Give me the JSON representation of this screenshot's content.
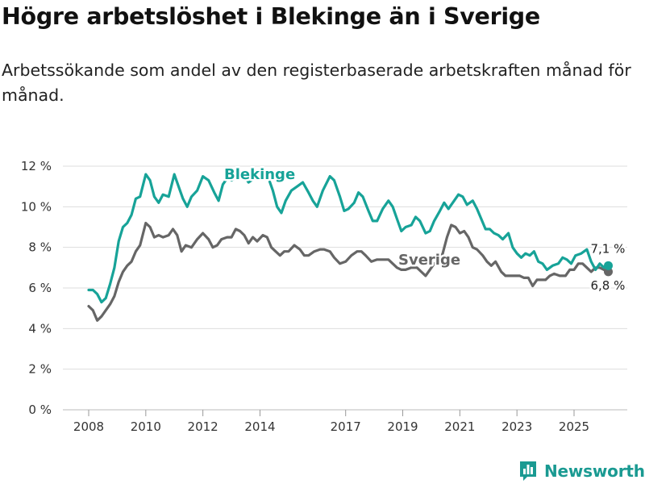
{
  "header": {
    "title": "Högre arbetslöshet i Blekinge än i Sverige",
    "subtitle": "Arbetssökande som andel av den registerbaserade arbetskraften månad för månad."
  },
  "brand": {
    "name": "Newsworthy",
    "icon": "newsworthy-logo-icon"
  },
  "colors": {
    "blekinge": "#17a398",
    "sverige": "#666666",
    "grid": "#dddddd",
    "brand": "#1a9a92"
  },
  "chart_data": {
    "type": "line",
    "title": "Högre arbetslöshet i Blekinge än i Sverige",
    "xlabel": "",
    "ylabel": "",
    "ylim": [
      0,
      12
    ],
    "xlim": [
      2007.5,
      2026.4
    ],
    "y_ticks": [
      0,
      2,
      4,
      6,
      8,
      10,
      12
    ],
    "y_tick_labels": [
      "0 %",
      "2 %",
      "4 %",
      "6 %",
      "8 %",
      "10 %",
      "12 %"
    ],
    "x_ticks": [
      2008,
      2010,
      2012,
      2014,
      2017,
      2019,
      2021,
      2023,
      2025
    ],
    "x_tick_labels": [
      "2008",
      "2010",
      "2012",
      "2014",
      "2017",
      "2019",
      "2021",
      "2023",
      "2025"
    ],
    "grid": true,
    "series": [
      {
        "name": "Blekinge",
        "label": "Blekinge",
        "end_label": "7,1 %",
        "end_value": 7.1,
        "points": [
          [
            2008.0,
            5.9
          ],
          [
            2008.15,
            5.9
          ],
          [
            2008.3,
            5.7
          ],
          [
            2008.45,
            5.3
          ],
          [
            2008.6,
            5.5
          ],
          [
            2008.75,
            6.2
          ],
          [
            2008.9,
            7.0
          ],
          [
            2009.05,
            8.3
          ],
          [
            2009.2,
            9.0
          ],
          [
            2009.35,
            9.2
          ],
          [
            2009.5,
            9.6
          ],
          [
            2009.65,
            10.4
          ],
          [
            2009.8,
            10.5
          ],
          [
            2010.0,
            11.6
          ],
          [
            2010.15,
            11.3
          ],
          [
            2010.3,
            10.5
          ],
          [
            2010.45,
            10.2
          ],
          [
            2010.6,
            10.6
          ],
          [
            2010.8,
            10.5
          ],
          [
            2011.0,
            11.6
          ],
          [
            2011.15,
            11.0
          ],
          [
            2011.3,
            10.4
          ],
          [
            2011.45,
            10.0
          ],
          [
            2011.6,
            10.5
          ],
          [
            2011.8,
            10.8
          ],
          [
            2012.0,
            11.5
          ],
          [
            2012.2,
            11.3
          ],
          [
            2012.4,
            10.7
          ],
          [
            2012.55,
            10.3
          ],
          [
            2012.7,
            11.1
          ],
          [
            2012.85,
            11.4
          ],
          [
            2013.0,
            11.3
          ],
          [
            2013.2,
            11.5
          ],
          [
            2013.4,
            11.6
          ],
          [
            2013.6,
            11.2
          ],
          [
            2013.8,
            11.4
          ],
          [
            2014.0,
            11.4
          ],
          [
            2014.15,
            11.6
          ],
          [
            2014.3,
            11.4
          ],
          [
            2014.45,
            10.8
          ],
          [
            2014.6,
            10.0
          ],
          [
            2014.75,
            9.7
          ],
          [
            2014.9,
            10.3
          ],
          [
            2015.1,
            10.8
          ],
          [
            2015.3,
            11.0
          ],
          [
            2015.5,
            11.2
          ],
          [
            2015.7,
            10.7
          ],
          [
            2015.85,
            10.3
          ],
          [
            2016.0,
            10.0
          ],
          [
            2016.2,
            10.8
          ],
          [
            2016.45,
            11.5
          ],
          [
            2016.6,
            11.3
          ],
          [
            2016.8,
            10.5
          ],
          [
            2016.95,
            9.8
          ],
          [
            2017.1,
            9.9
          ],
          [
            2017.3,
            10.2
          ],
          [
            2017.45,
            10.7
          ],
          [
            2017.6,
            10.5
          ],
          [
            2017.8,
            9.8
          ],
          [
            2017.95,
            9.3
          ],
          [
            2018.1,
            9.3
          ],
          [
            2018.3,
            9.9
          ],
          [
            2018.5,
            10.3
          ],
          [
            2018.65,
            10.0
          ],
          [
            2018.8,
            9.4
          ],
          [
            2018.95,
            8.8
          ],
          [
            2019.1,
            9.0
          ],
          [
            2019.3,
            9.1
          ],
          [
            2019.45,
            9.5
          ],
          [
            2019.6,
            9.3
          ],
          [
            2019.8,
            8.7
          ],
          [
            2019.95,
            8.8
          ],
          [
            2020.1,
            9.3
          ],
          [
            2020.3,
            9.8
          ],
          [
            2020.45,
            10.2
          ],
          [
            2020.6,
            9.9
          ],
          [
            2020.8,
            10.3
          ],
          [
            2020.95,
            10.6
          ],
          [
            2021.1,
            10.5
          ],
          [
            2021.25,
            10.1
          ],
          [
            2021.45,
            10.3
          ],
          [
            2021.6,
            9.9
          ],
          [
            2021.75,
            9.4
          ],
          [
            2021.9,
            8.9
          ],
          [
            2022.05,
            8.9
          ],
          [
            2022.2,
            8.7
          ],
          [
            2022.35,
            8.6
          ],
          [
            2022.5,
            8.4
          ],
          [
            2022.7,
            8.7
          ],
          [
            2022.85,
            8.0
          ],
          [
            2023.0,
            7.7
          ],
          [
            2023.15,
            7.5
          ],
          [
            2023.3,
            7.7
          ],
          [
            2023.45,
            7.6
          ],
          [
            2023.6,
            7.8
          ],
          [
            2023.75,
            7.3
          ],
          [
            2023.9,
            7.2
          ],
          [
            2024.05,
            6.9
          ],
          [
            2024.25,
            7.1
          ],
          [
            2024.45,
            7.2
          ],
          [
            2024.6,
            7.5
          ],
          [
            2024.75,
            7.4
          ],
          [
            2024.9,
            7.2
          ],
          [
            2025.05,
            7.6
          ],
          [
            2025.25,
            7.7
          ],
          [
            2025.45,
            7.9
          ],
          [
            2025.6,
            7.3
          ],
          [
            2025.75,
            6.9
          ],
          [
            2025.9,
            7.2
          ],
          [
            2026.05,
            7.0
          ],
          [
            2026.2,
            7.1
          ]
        ]
      },
      {
        "name": "Sverige",
        "label": "Sverige",
        "end_label": "6,8 %",
        "end_value": 6.8,
        "points": [
          [
            2008.0,
            5.1
          ],
          [
            2008.15,
            4.9
          ],
          [
            2008.3,
            4.4
          ],
          [
            2008.45,
            4.6
          ],
          [
            2008.6,
            4.9
          ],
          [
            2008.75,
            5.2
          ],
          [
            2008.9,
            5.6
          ],
          [
            2009.05,
            6.3
          ],
          [
            2009.2,
            6.8
          ],
          [
            2009.35,
            7.1
          ],
          [
            2009.5,
            7.3
          ],
          [
            2009.65,
            7.8
          ],
          [
            2009.8,
            8.1
          ],
          [
            2010.0,
            9.2
          ],
          [
            2010.15,
            9.0
          ],
          [
            2010.3,
            8.5
          ],
          [
            2010.45,
            8.6
          ],
          [
            2010.6,
            8.5
          ],
          [
            2010.8,
            8.6
          ],
          [
            2010.95,
            8.9
          ],
          [
            2011.1,
            8.6
          ],
          [
            2011.25,
            7.8
          ],
          [
            2011.4,
            8.1
          ],
          [
            2011.6,
            8.0
          ],
          [
            2011.8,
            8.4
          ],
          [
            2012.0,
            8.7
          ],
          [
            2012.2,
            8.4
          ],
          [
            2012.35,
            8.0
          ],
          [
            2012.5,
            8.1
          ],
          [
            2012.65,
            8.4
          ],
          [
            2012.85,
            8.5
          ],
          [
            2013.0,
            8.5
          ],
          [
            2013.15,
            8.9
          ],
          [
            2013.3,
            8.8
          ],
          [
            2013.45,
            8.6
          ],
          [
            2013.6,
            8.2
          ],
          [
            2013.75,
            8.5
          ],
          [
            2013.9,
            8.3
          ],
          [
            2014.1,
            8.6
          ],
          [
            2014.25,
            8.5
          ],
          [
            2014.4,
            8.0
          ],
          [
            2014.55,
            7.8
          ],
          [
            2014.7,
            7.6
          ],
          [
            2014.85,
            7.8
          ],
          [
            2015.0,
            7.8
          ],
          [
            2015.2,
            8.1
          ],
          [
            2015.4,
            7.9
          ],
          [
            2015.55,
            7.6
          ],
          [
            2015.7,
            7.6
          ],
          [
            2015.9,
            7.8
          ],
          [
            2016.1,
            7.9
          ],
          [
            2016.25,
            7.9
          ],
          [
            2016.45,
            7.8
          ],
          [
            2016.6,
            7.5
          ],
          [
            2016.8,
            7.2
          ],
          [
            2017.0,
            7.3
          ],
          [
            2017.2,
            7.6
          ],
          [
            2017.4,
            7.8
          ],
          [
            2017.55,
            7.8
          ],
          [
            2017.7,
            7.6
          ],
          [
            2017.9,
            7.3
          ],
          [
            2018.1,
            7.4
          ],
          [
            2018.3,
            7.4
          ],
          [
            2018.5,
            7.4
          ],
          [
            2018.65,
            7.2
          ],
          [
            2018.8,
            7.0
          ],
          [
            2018.95,
            6.9
          ],
          [
            2019.1,
            6.9
          ],
          [
            2019.3,
            7.0
          ],
          [
            2019.5,
            7.0
          ],
          [
            2019.65,
            6.8
          ],
          [
            2019.8,
            6.6
          ],
          [
            2019.95,
            6.9
          ],
          [
            2020.1,
            7.2
          ],
          [
            2020.25,
            7.3
          ],
          [
            2020.4,
            7.7
          ],
          [
            2020.55,
            8.5
          ],
          [
            2020.7,
            9.1
          ],
          [
            2020.85,
            9.0
          ],
          [
            2021.0,
            8.7
          ],
          [
            2021.15,
            8.8
          ],
          [
            2021.3,
            8.5
          ],
          [
            2021.45,
            8.0
          ],
          [
            2021.6,
            7.9
          ],
          [
            2021.8,
            7.6
          ],
          [
            2021.95,
            7.3
          ],
          [
            2022.1,
            7.1
          ],
          [
            2022.25,
            7.3
          ],
          [
            2022.45,
            6.8
          ],
          [
            2022.6,
            6.6
          ],
          [
            2022.75,
            6.6
          ],
          [
            2022.95,
            6.6
          ],
          [
            2023.1,
            6.6
          ],
          [
            2023.25,
            6.5
          ],
          [
            2023.4,
            6.5
          ],
          [
            2023.55,
            6.1
          ],
          [
            2023.7,
            6.4
          ],
          [
            2023.85,
            6.4
          ],
          [
            2024.0,
            6.4
          ],
          [
            2024.15,
            6.6
          ],
          [
            2024.3,
            6.7
          ],
          [
            2024.5,
            6.6
          ],
          [
            2024.7,
            6.6
          ],
          [
            2024.85,
            6.9
          ],
          [
            2025.0,
            6.9
          ],
          [
            2025.15,
            7.2
          ],
          [
            2025.3,
            7.2
          ],
          [
            2025.45,
            7.0
          ],
          [
            2025.6,
            6.8
          ],
          [
            2025.75,
            7.0
          ],
          [
            2025.9,
            7.0
          ],
          [
            2026.05,
            6.9
          ],
          [
            2026.2,
            6.8
          ]
        ]
      }
    ]
  }
}
